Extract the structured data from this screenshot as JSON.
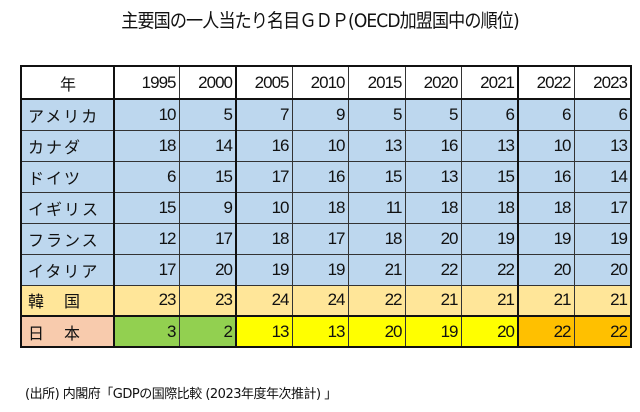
{
  "title": "主要国の一人当たり名目ＧＤＰ(OECD加盟国中の順位)",
  "table": {
    "corner": "年",
    "years": [
      "1995",
      "2000",
      "2005",
      "2010",
      "2015",
      "2020",
      "2021",
      "2022",
      "2023"
    ],
    "rows": [
      {
        "label": "アメリカ",
        "values": [
          10,
          5,
          7,
          9,
          5,
          5,
          6,
          6,
          6
        ],
        "label_color": "#bdd7ee",
        "cell_colors": [
          "#bdd7ee",
          "#bdd7ee",
          "#bdd7ee",
          "#bdd7ee",
          "#bdd7ee",
          "#bdd7ee",
          "#bdd7ee",
          "#bdd7ee",
          "#bdd7ee"
        ]
      },
      {
        "label": "カナダ",
        "values": [
          18,
          14,
          16,
          10,
          13,
          16,
          13,
          10,
          13
        ],
        "label_color": "#bdd7ee",
        "cell_colors": [
          "#bdd7ee",
          "#bdd7ee",
          "#bdd7ee",
          "#bdd7ee",
          "#bdd7ee",
          "#bdd7ee",
          "#bdd7ee",
          "#bdd7ee",
          "#bdd7ee"
        ]
      },
      {
        "label": "ドイツ",
        "values": [
          6,
          15,
          17,
          16,
          15,
          13,
          15,
          16,
          14
        ],
        "label_color": "#bdd7ee",
        "cell_colors": [
          "#bdd7ee",
          "#bdd7ee",
          "#bdd7ee",
          "#bdd7ee",
          "#bdd7ee",
          "#bdd7ee",
          "#bdd7ee",
          "#bdd7ee",
          "#bdd7ee"
        ]
      },
      {
        "label": "イギリス",
        "values": [
          15,
          9,
          10,
          18,
          11,
          18,
          18,
          18,
          17
        ],
        "label_color": "#bdd7ee",
        "cell_colors": [
          "#bdd7ee",
          "#bdd7ee",
          "#bdd7ee",
          "#bdd7ee",
          "#bdd7ee",
          "#bdd7ee",
          "#bdd7ee",
          "#bdd7ee",
          "#bdd7ee"
        ]
      },
      {
        "label": "フランス",
        "values": [
          12,
          17,
          18,
          17,
          18,
          20,
          19,
          19,
          19
        ],
        "label_color": "#bdd7ee",
        "cell_colors": [
          "#bdd7ee",
          "#bdd7ee",
          "#bdd7ee",
          "#bdd7ee",
          "#bdd7ee",
          "#bdd7ee",
          "#bdd7ee",
          "#bdd7ee",
          "#bdd7ee"
        ]
      },
      {
        "label": "イタリア",
        "values": [
          17,
          20,
          19,
          19,
          21,
          22,
          22,
          20,
          20
        ],
        "label_color": "#bdd7ee",
        "cell_colors": [
          "#bdd7ee",
          "#bdd7ee",
          "#bdd7ee",
          "#bdd7ee",
          "#bdd7ee",
          "#bdd7ee",
          "#bdd7ee",
          "#bdd7ee",
          "#bdd7ee"
        ]
      },
      {
        "label": "韓　国",
        "values": [
          23,
          23,
          24,
          24,
          22,
          21,
          21,
          21,
          21
        ],
        "label_color": "#ffe699",
        "cell_colors": [
          "#ffe699",
          "#ffe699",
          "#ffe699",
          "#ffe699",
          "#ffe699",
          "#ffe699",
          "#ffe699",
          "#ffe699",
          "#ffe699"
        ]
      },
      {
        "label": "日　本",
        "values": [
          3,
          2,
          13,
          13,
          20,
          19,
          20,
          22,
          22
        ],
        "label_color": "#f8cbad",
        "cell_colors": [
          "#92d050",
          "#92d050",
          "#ffff00",
          "#ffff00",
          "#ffff00",
          "#ffff00",
          "#ffff00",
          "#ffc000",
          "#ffc000"
        ]
      }
    ]
  },
  "source": "(出所) 内閣府「GDPの国際比較 (2023年度年次推計) 」"
}
